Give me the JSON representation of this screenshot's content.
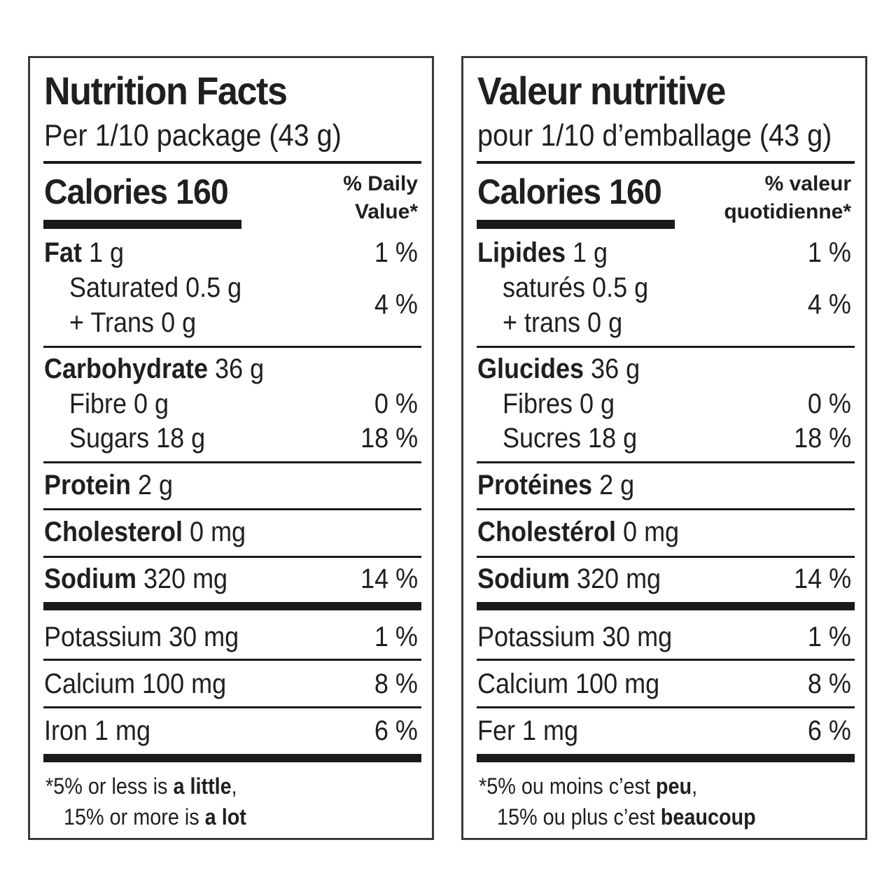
{
  "english": {
    "title": "Nutrition Facts",
    "serving": "Per 1/10 package (43 g)",
    "calories": "Calories 160",
    "dv_line1": "% Daily",
    "dv_line2": "Value*",
    "fat_label": "Fat",
    "fat_amount": " 1 g",
    "fat_pct": "1 %",
    "saturated": "Saturated 0.5 g",
    "trans": "+ Trans 0 g",
    "sat_trans_pct": "4 %",
    "carb_label": "Carbohydrate",
    "carb_amount": " 36 g",
    "fibre": "Fibre 0 g",
    "fibre_pct": "0 %",
    "sugars": "Sugars 18 g",
    "sugars_pct": "18 %",
    "protein_label": "Protein",
    "protein_amount": " 2 g",
    "chol_label": "Cholesterol",
    "chol_amount": " 0 mg",
    "sodium_label": "Sodium",
    "sodium_amount": " 320 mg",
    "sodium_pct": "14 %",
    "potassium": "Potassium 30 mg",
    "potassium_pct": "1 %",
    "calcium": "Calcium 100 mg",
    "calcium_pct": "8 %",
    "iron": "Iron 1 mg",
    "iron_pct": "6 %",
    "foot1_a": "*5% or less is ",
    "foot1_b": "a little",
    "foot1_c": ",",
    "foot2_a": "15% or more is ",
    "foot2_b": "a lot"
  },
  "french": {
    "title": "Valeur nutritive",
    "serving": "pour 1/10 d’emballage (43 g)",
    "calories": "Calories 160",
    "dv_line1": "% valeur",
    "dv_line2": "quotidienne*",
    "fat_label": "Lipides",
    "fat_amount": " 1 g",
    "fat_pct": "1 %",
    "saturated": "saturés 0.5 g",
    "trans": "+ trans 0 g",
    "sat_trans_pct": "4 %",
    "carb_label": "Glucides",
    "carb_amount": " 36 g",
    "fibre": "Fibres 0 g",
    "fibre_pct": "0 %",
    "sugars": "Sucres 18 g",
    "sugars_pct": "18 %",
    "protein_label": "Protéines",
    "protein_amount": " 2 g",
    "chol_label": "Cholestérol",
    "chol_amount": " 0 mg",
    "sodium_label": "Sodium",
    "sodium_amount": " 320 mg",
    "sodium_pct": "14 %",
    "potassium": "Potassium 30 mg",
    "potassium_pct": "1 %",
    "calcium": "Calcium 100 mg",
    "calcium_pct": "8 %",
    "iron": "Fer 1 mg",
    "iron_pct": "6 %",
    "foot1_a": "*5% ou moins c’est ",
    "foot1_b": "peu",
    "foot1_c": ",",
    "foot2_a": "15% ou plus c’est ",
    "foot2_b": "beaucoup"
  }
}
